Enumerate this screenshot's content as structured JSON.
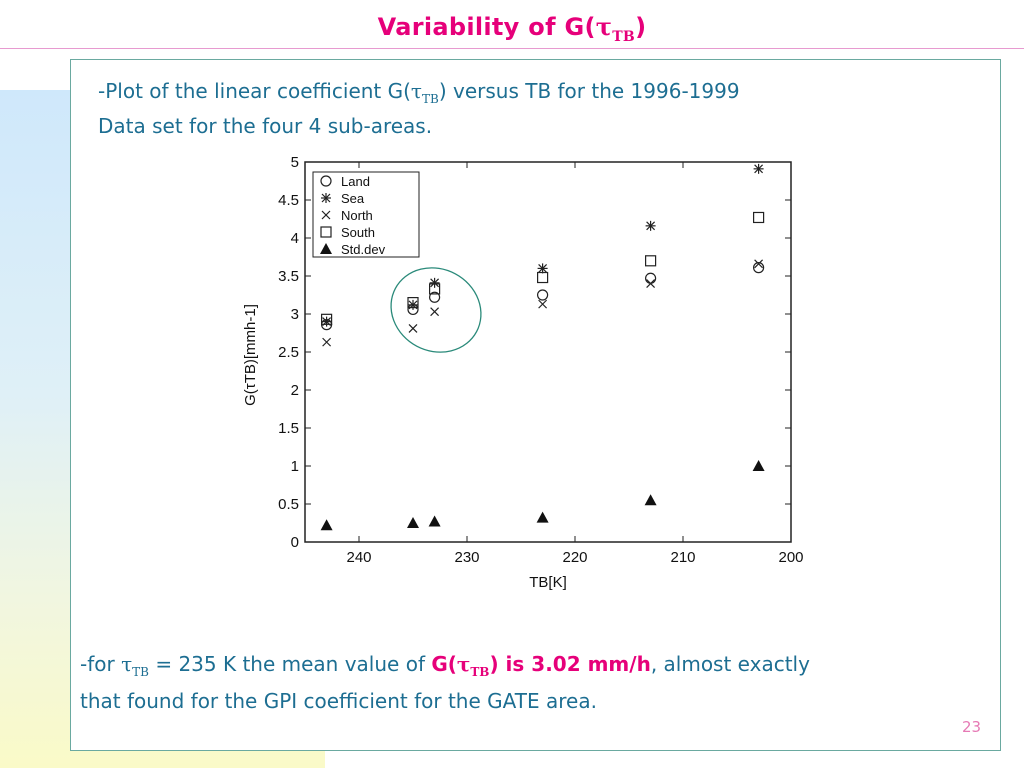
{
  "slide": {
    "title_main": "Variability of G(",
    "title_tau": "τ",
    "title_sub": "TB",
    "title_close": ")",
    "page_number": "23"
  },
  "description": {
    "line1_a": "-Plot of the linear coefficient G(",
    "tau": "τ",
    "sub": "TB",
    "line1_b": ") versus TB for the 1996-1999",
    "line2": "Data set for the four 4 sub-areas."
  },
  "note": {
    "prefix": "-for ",
    "tau": "τ",
    "sub": "TB",
    "mid": " = 235 K the mean value of ",
    "hl_a": "G(",
    "hl_tau": "τ",
    "hl_sub": "TB",
    "hl_b": ") is 3.02 mm/h",
    "suffix": ", almost exactly",
    "line2": "that found for the GPI coefficient for the GATE area."
  },
  "chart_data": {
    "type": "scatter",
    "xlabel": "TB[K]",
    "ylabel": "G(τTB)[mmh-1]",
    "xlim": [
      245,
      200
    ],
    "ylim": [
      0,
      5
    ],
    "x_reversed": true,
    "x_ticks": [
      "240",
      "230",
      "220",
      "210",
      "200"
    ],
    "x_tick_values": [
      240,
      230,
      220,
      210,
      200
    ],
    "y_ticks": [
      "0",
      "0.5",
      "1",
      "1.5",
      "2",
      "2.5",
      "3",
      "3.5",
      "4",
      "4.5",
      "5"
    ],
    "y_tick_values": [
      0,
      0.5,
      1,
      1.5,
      2,
      2.5,
      3,
      3.5,
      4,
      4.5,
      5
    ],
    "legend_position": "top-left",
    "annotation": "circled cluster around TB = 235 K",
    "series": [
      {
        "name": "Land",
        "marker": "circle",
        "x": [
          243,
          235,
          233,
          223,
          213,
          203
        ],
        "y": [
          2.86,
          3.06,
          3.22,
          3.25,
          3.47,
          3.61
        ]
      },
      {
        "name": "Sea",
        "marker": "asterisk",
        "x": [
          243,
          235,
          233,
          223,
          213,
          203
        ],
        "y": [
          2.9,
          3.12,
          3.41,
          3.6,
          4.16,
          4.91
        ]
      },
      {
        "name": "North",
        "marker": "x",
        "x": [
          243,
          235,
          233,
          223,
          213,
          203
        ],
        "y": [
          2.63,
          2.81,
          3.03,
          3.13,
          3.4,
          3.66
        ]
      },
      {
        "name": "South",
        "marker": "square",
        "x": [
          243,
          235,
          233,
          223,
          213,
          203
        ],
        "y": [
          2.93,
          3.15,
          3.33,
          3.48,
          3.7,
          4.27
        ]
      },
      {
        "name": "Std.dev",
        "marker": "triangle",
        "x": [
          243,
          235,
          233,
          223,
          213,
          203
        ],
        "y": [
          0.22,
          0.25,
          0.27,
          0.32,
          0.55,
          1.0
        ]
      }
    ]
  }
}
